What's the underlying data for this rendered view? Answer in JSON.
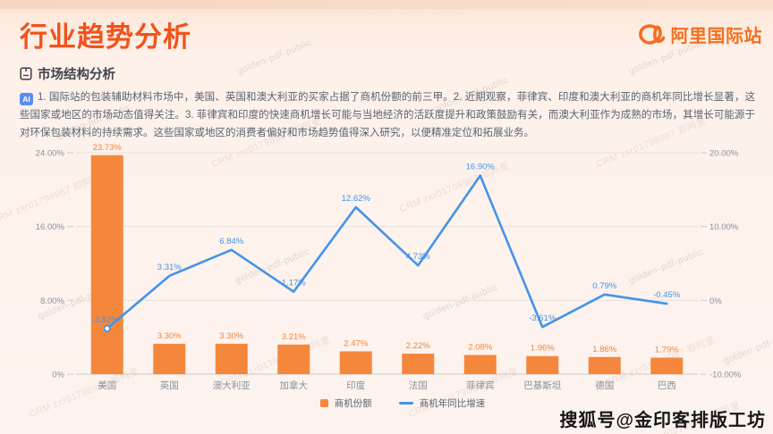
{
  "header": {
    "title": "行业趋势分析",
    "logo_text": "阿里国际站"
  },
  "section": {
    "title": "市场结构分析"
  },
  "ai_note": {
    "badge": "AI",
    "text": "1. 国际站的包装辅助材料市场中，美国、英国和澳大利亚的买家占据了商机份额的前三甲。2. 近期观察，菲律宾、印度和澳大利亚的商机年同比增长显著，这些国家或地区的市场动态值得关注。3. 菲律宾和印度的快速商机增长可能与当地经济的活跃度提升和政策鼓励有关，而澳大利亚作为成熟的市场，其增长可能源于对环保包装材料的持续需求。这些国家或地区的消费者偏好和市场趋势值得深入研究，以便精准定位和拓展业务。"
  },
  "chart_data": {
    "type": "bar+line",
    "categories": [
      "美国",
      "英国",
      "澳大利亚",
      "加拿大",
      "印度",
      "法国",
      "菲律宾",
      "巴基斯坦",
      "德国",
      "巴西"
    ],
    "series": [
      {
        "name": "商机份额",
        "type": "bar",
        "axis": "left",
        "color": "#f5873c",
        "label_color": "#f0853c",
        "values": [
          23.73,
          3.3,
          3.3,
          3.21,
          2.47,
          2.22,
          2.08,
          1.96,
          1.86,
          1.79
        ],
        "labels": [
          "23.73%",
          "3.30%",
          "3.30%",
          "3.21%",
          "2.47%",
          "2.22%",
          "2.08%",
          "1.96%",
          "1.86%",
          "1.79%"
        ]
      },
      {
        "name": "商机年同比增速",
        "type": "line",
        "axis": "right",
        "color": "#4493ea",
        "label_color": "#4493ea",
        "values": [
          -3.82,
          3.31,
          6.84,
          1.17,
          12.62,
          4.73,
          16.9,
          -3.61,
          0.79,
          -0.45
        ],
        "labels": [
          "-3.82%",
          "3.31%",
          "6.84%",
          "1.17%",
          "12.62%",
          "4.73%",
          "16.90%",
          "-3.61%",
          "0.79%",
          "-0.45%"
        ]
      }
    ],
    "left_axis": {
      "min": 0,
      "max": 24,
      "tick_values": [
        24,
        16,
        8,
        0
      ],
      "tick_labels": [
        "24.00%",
        "16.00%",
        "8.00%",
        "0%"
      ]
    },
    "right_axis": {
      "min": -10,
      "max": 20,
      "tick_values": [
        20,
        10,
        0,
        -10
      ],
      "tick_labels": [
        "20.00%",
        "10.00%",
        "0%",
        "-10.00%"
      ]
    },
    "grid": true,
    "legend_position": "bottom",
    "axis_text_color": "#8a9099",
    "grid_color": "#e7e2dd",
    "axis_line_color": "#cfc9c4"
  },
  "watermarks": {
    "tile_a": "golden-pdf-public",
    "tile_b": "CRM zxr01798967 郑阿里",
    "sohu_badge": "搜狐号@金印客排版工坊"
  }
}
